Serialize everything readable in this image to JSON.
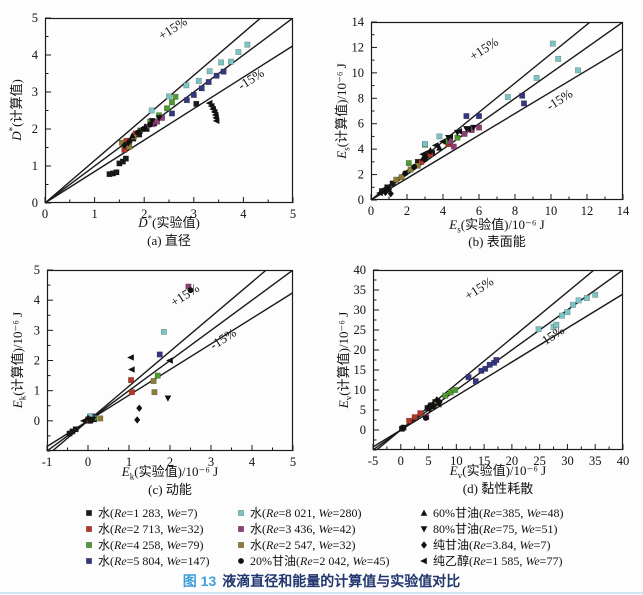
{
  "figure": {
    "caption_label": "图 13",
    "caption_text": "液滴直径和能量的计算值与实验值对比",
    "caption_label_color": "#3f9fd8",
    "caption_text_color": "#21366e"
  },
  "ref_lines": {
    "slopes": [
      1.15,
      1.0,
      0.85
    ],
    "color": "#1a1a1a",
    "upper_label": "+15%",
    "lower_label": "-15%"
  },
  "legend": {
    "series": [
      {
        "id": "w1283",
        "name": "水",
        "re": "1 283",
        "we": "7",
        "marker": "square",
        "color": "#1a1a1a",
        "column": 0
      },
      {
        "id": "w2713",
        "name": "水",
        "re": "2 713",
        "we": "32",
        "marker": "square",
        "color": "#b53527",
        "column": 0
      },
      {
        "id": "w4258",
        "name": "水",
        "re": "4 258",
        "we": "79",
        "marker": "square",
        "color": "#4f9a2f",
        "column": 0
      },
      {
        "id": "w5804",
        "name": "水",
        "re": "5 804",
        "we": "147",
        "marker": "square",
        "color": "#34377f",
        "column": 0
      },
      {
        "id": "w8021",
        "name": "水",
        "re": "8 021",
        "we": "280",
        "marker": "square",
        "color": "#7cc3c3",
        "column": 1
      },
      {
        "id": "w3436",
        "name": "水",
        "re": "3 436",
        "we": "42",
        "marker": "square",
        "color": "#8d3e74",
        "column": 1
      },
      {
        "id": "w2547",
        "name": "水",
        "re": "2 547",
        "we": "32",
        "marker": "square",
        "color": "#8d7c35",
        "column": 1
      },
      {
        "id": "g20",
        "name": "20%甘油",
        "re": "2 042",
        "we": "45",
        "marker": "circle",
        "color": "#111111",
        "column": 1
      },
      {
        "id": "g60",
        "name": "60%甘油",
        "re": "385",
        "we": "48",
        "marker": "tri-up",
        "color": "#111111",
        "column": 2
      },
      {
        "id": "g80",
        "name": "80%甘油",
        "re": "75",
        "we": "51",
        "marker": "tri-down",
        "color": "#111111",
        "column": 2
      },
      {
        "id": "g100",
        "name": "纯甘油",
        "re": "3.84",
        "we": "7",
        "marker": "diamond",
        "color": "#111111",
        "column": 2
      },
      {
        "id": "eth",
        "name": "纯乙醇",
        "re": "1 585",
        "we": "77",
        "marker": "tri-left",
        "color": "#111111",
        "column": 2
      }
    ]
  },
  "chart_data": [
    {
      "type": "scatter",
      "caption": "(a) 直径",
      "xlabel": {
        "main": "D",
        "sup": "*",
        "sub": "",
        "rest": "(实验值)"
      },
      "ylabel": {
        "main": "D",
        "sup": "*",
        "sub": "",
        "rest": "(计算值)"
      },
      "xlim": [
        0,
        5
      ],
      "ylim": [
        0,
        5
      ],
      "xticks": [
        0,
        1,
        2,
        3,
        4,
        5
      ],
      "yticks": [
        0,
        1,
        2,
        3,
        4,
        5
      ],
      "x_minor_step": 0.5,
      "y_minor_step": 0.5,
      "grid": false,
      "annotations": [
        {
          "text": "+15%",
          "x": 2.62,
          "y": 4.62
        },
        {
          "text": "-15%",
          "x": 4.2,
          "y": 3.25
        }
      ],
      "points": {
        "w1283": [
          [
            1.3,
            0.78
          ],
          [
            1.37,
            0.8
          ],
          [
            1.44,
            0.83
          ],
          [
            1.5,
            1.07
          ],
          [
            1.57,
            1.12
          ],
          [
            1.63,
            1.2
          ],
          [
            1.7,
            1.68
          ],
          [
            1.78,
            1.74
          ],
          [
            1.9,
            1.85
          ],
          [
            2.05,
            2.0
          ],
          [
            2.2,
            2.15
          ],
          [
            3.05,
            2.68
          ]
        ],
        "w2713": [
          [
            1.6,
            1.44
          ],
          [
            1.64,
            1.68
          ],
          [
            1.83,
            1.88
          ]
        ],
        "w4258": [
          [
            2.12,
            2.2
          ],
          [
            2.3,
            2.37
          ],
          [
            2.46,
            2.56
          ],
          [
            2.56,
            2.72
          ],
          [
            2.63,
            2.87
          ]
        ],
        "w5804": [
          [
            2.56,
            2.42
          ],
          [
            2.86,
            2.78
          ],
          [
            3.0,
            2.92
          ],
          [
            3.16,
            3.1
          ],
          [
            3.3,
            3.27
          ],
          [
            3.46,
            3.44
          ],
          [
            3.6,
            3.55
          ]
        ],
        "w8021": [
          [
            2.15,
            2.5
          ],
          [
            2.5,
            2.88
          ],
          [
            2.85,
            3.18
          ],
          [
            3.1,
            3.3
          ],
          [
            3.32,
            3.56
          ],
          [
            3.55,
            3.8
          ],
          [
            3.75,
            3.82
          ],
          [
            3.9,
            4.08
          ],
          [
            4.08,
            4.28
          ]
        ],
        "w3436": [
          [
            2.05,
            2.06
          ],
          [
            2.16,
            2.13
          ],
          [
            2.26,
            2.2
          ],
          [
            2.36,
            2.3
          ]
        ],
        "w2547": [
          [
            1.55,
            1.63
          ],
          [
            1.7,
            1.52
          ],
          [
            1.79,
            1.79
          ],
          [
            1.92,
            1.96
          ]
        ],
        "g20": [
          [
            1.87,
            1.9
          ],
          [
            1.98,
            2.0
          ],
          [
            2.12,
            2.12
          ]
        ],
        "g60": [
          [
            1.76,
            1.82
          ],
          [
            1.9,
            1.94
          ],
          [
            2.02,
            2.06
          ]
        ],
        "g80": [
          [
            2.16,
            2.22
          ],
          [
            2.3,
            2.3
          ]
        ],
        "g100": [
          [
            1.6,
            1.56
          ],
          [
            1.68,
            1.63
          ]
        ],
        "eth": [
          [
            3.32,
            2.7
          ],
          [
            3.36,
            2.62
          ],
          [
            3.39,
            2.54
          ],
          [
            3.42,
            2.46
          ],
          [
            3.44,
            2.38
          ],
          [
            3.45,
            2.3
          ],
          [
            3.46,
            2.22
          ]
        ]
      }
    },
    {
      "type": "scatter",
      "caption": "(b) 表面能",
      "xlabel": {
        "main": "E",
        "sup": "",
        "sub": "s",
        "rest": "(实验值)/10⁻⁶ J"
      },
      "ylabel": {
        "main": "E",
        "sup": "",
        "sub": "s",
        "rest": "(计算值)/10⁻⁶ J"
      },
      "xlim": [
        0,
        14
      ],
      "ylim": [
        0,
        14
      ],
      "xticks": [
        0,
        2,
        4,
        6,
        8,
        10,
        12,
        14
      ],
      "yticks": [
        0,
        2,
        4,
        6,
        8,
        10,
        12,
        14
      ],
      "x_minor_step": 1,
      "y_minor_step": 1,
      "grid": false,
      "annotations": [
        {
          "text": "+15%",
          "x": 6.4,
          "y": 11.6
        },
        {
          "text": "-15%",
          "x": 10.6,
          "y": 7.6
        }
      ],
      "points": {
        "w1283": [
          [
            0.6,
            0.7
          ],
          [
            0.9,
            1.0
          ],
          [
            1.2,
            1.3
          ],
          [
            2.6,
            3.0
          ],
          [
            3.1,
            3.5
          ],
          [
            3.4,
            3.7
          ]
        ],
        "w2713": [
          [
            2.8,
            3.0
          ],
          [
            3.3,
            3.6
          ],
          [
            4.3,
            4.4
          ]
        ],
        "w4258": [
          [
            2.1,
            2.9
          ],
          [
            3.0,
            4.35
          ],
          [
            4.2,
            4.6
          ],
          [
            4.8,
            4.9
          ]
        ],
        "w5804": [
          [
            5.3,
            6.6
          ],
          [
            6.0,
            6.6
          ],
          [
            8.4,
            8.2
          ],
          [
            8.5,
            7.6
          ]
        ],
        "w8021": [
          [
            3.0,
            4.4
          ],
          [
            3.8,
            5.0
          ],
          [
            7.6,
            8.1
          ],
          [
            9.2,
            9.6
          ],
          [
            10.1,
            12.3
          ],
          [
            10.4,
            11.1
          ],
          [
            11.5,
            10.2
          ]
        ],
        "w3436": [
          [
            4.4,
            4.6
          ],
          [
            5.2,
            5.2
          ],
          [
            5.6,
            5.5
          ],
          [
            6.0,
            5.7
          ],
          [
            4.6,
            4.2
          ]
        ],
        "w2547": [
          [
            1.4,
            1.6
          ],
          [
            1.7,
            1.8
          ],
          [
            2.2,
            2.4
          ],
          [
            2.6,
            2.7
          ]
        ],
        "g20": [
          [
            1.9,
            2.1
          ],
          [
            2.4,
            2.6
          ],
          [
            3.0,
            3.2
          ]
        ],
        "g60": [
          [
            2.9,
            3.3
          ],
          [
            3.3,
            3.9
          ],
          [
            3.8,
            4.1
          ]
        ],
        "g80": [
          [
            4.3,
            4.9
          ],
          [
            4.8,
            5.3
          ],
          [
            5.3,
            5.6
          ],
          [
            5.7,
            5.7
          ]
        ],
        "g100": [
          [
            0.8,
            0.6
          ],
          [
            1.0,
            0.85
          ],
          [
            1.1,
            0.5
          ]
        ],
        "eth": [
          [
            0.5,
            0.55
          ],
          [
            0.8,
            0.9
          ],
          [
            2.9,
            3.6
          ],
          [
            3.2,
            3.8
          ],
          [
            3.6,
            4.3
          ],
          [
            4.0,
            4.6
          ],
          [
            4.4,
            5.0
          ],
          [
            4.9,
            5.4
          ],
          [
            5.4,
            5.6
          ]
        ]
      }
    },
    {
      "type": "scatter",
      "caption": "(c) 动能",
      "xlabel": {
        "main": "E",
        "sup": "",
        "sub": "k",
        "rest": "(实验值)/10⁻⁶ J"
      },
      "ylabel": {
        "main": "E",
        "sup": "",
        "sub": "k",
        "rest": "(计算值)/10⁻⁶ J"
      },
      "xlim": [
        -1,
        5
      ],
      "ylim": [
        -1,
        5
      ],
      "xticks": [
        -1,
        0,
        1,
        2,
        3,
        4,
        5
      ],
      "yticks": [
        0,
        1,
        2,
        3,
        4,
        5
      ],
      "x_minor_step": 0.5,
      "y_minor_step": 0.5,
      "grid": false,
      "annotations": [
        {
          "text": "+15%",
          "x": 2.42,
          "y": 4.05
        },
        {
          "text": "-15%",
          "x": 3.35,
          "y": 2.6
        }
      ],
      "points": {
        "w1283": [
          [
            0.05,
            0.0
          ],
          [
            0.15,
            0.05
          ],
          [
            -0.3,
            -0.28
          ],
          [
            -0.38,
            -0.35
          ],
          [
            -0.45,
            -0.42
          ]
        ],
        "w2713": [
          [
            1.05,
            1.35
          ],
          [
            1.07,
            0.95
          ],
          [
            0.0,
            0.05
          ]
        ],
        "w4258": [
          [
            1.7,
            1.5
          ],
          [
            0.15,
            0.1
          ]
        ],
        "w5804": [
          [
            1.75,
            2.2
          ],
          [
            0.1,
            0.15
          ]
        ],
        "w8021": [
          [
            1.85,
            2.95
          ],
          [
            0.05,
            0.15
          ]
        ],
        "w3436": [
          [
            2.45,
            4.45
          ]
        ],
        "w2547": [
          [
            1.6,
            1.32
          ],
          [
            1.62,
            0.95
          ],
          [
            0.3,
            0.08
          ]
        ],
        "g20": [
          [
            2.5,
            4.33
          ],
          [
            0.05,
            0.05
          ]
        ],
        "g60": [
          [
            0.0,
            0.1
          ]
        ],
        "g80": [
          [
            1.95,
            0.75
          ],
          [
            0.12,
            0.04
          ]
        ],
        "g100": [
          [
            1.25,
            0.42
          ],
          [
            1.2,
            0.03
          ]
        ],
        "eth": [
          [
            1.05,
            2.1
          ],
          [
            1.07,
            1.7
          ],
          [
            2.0,
            2.0
          ],
          [
            -0.1,
            0.0
          ]
        ]
      }
    },
    {
      "type": "scatter",
      "caption": "(d) 黏性耗散",
      "xlabel": {
        "main": "E",
        "sup": "",
        "sub": "v",
        "rest": "(实验值)/10⁻⁶ J"
      },
      "ylabel": {
        "main": "E",
        "sup": "",
        "sub": "v",
        "rest": "(计算值)/10⁻⁶ J"
      },
      "xlim": [
        -5,
        40
      ],
      "ylim": [
        -5,
        40
      ],
      "xticks": [
        -5,
        0,
        5,
        10,
        15,
        20,
        25,
        30,
        35,
        40
      ],
      "yticks": [
        0,
        5,
        10,
        15,
        20,
        25,
        30,
        35,
        40
      ],
      "x_minor_step": 2.5,
      "y_minor_step": 2.5,
      "grid": false,
      "annotations": [
        {
          "text": "+15%",
          "x": 14.5,
          "y": 34.5
        },
        {
          "text": "-15%",
          "x": 27.5,
          "y": 22.5
        }
      ],
      "points": {
        "w1283": [
          [
            0.2,
            0.3
          ],
          [
            4.8,
            5.5
          ],
          [
            5.5,
            6.2
          ],
          [
            6.2,
            7.0
          ],
          [
            0.5,
            0.6
          ]
        ],
        "w2713": [
          [
            1.5,
            2.3
          ],
          [
            2.5,
            3.2
          ],
          [
            3.5,
            4.2
          ]
        ],
        "w4258": [
          [
            8.0,
            8.6
          ],
          [
            9.0,
            9.4
          ],
          [
            9.8,
            10.0
          ]
        ],
        "w5804": [
          [
            12.2,
            13.2
          ],
          [
            13.5,
            12.2
          ],
          [
            14.5,
            14.8
          ],
          [
            15.2,
            15.3
          ],
          [
            16.0,
            16.3
          ],
          [
            16.8,
            16.8
          ],
          [
            17.2,
            17.5
          ]
        ],
        "w8021": [
          [
            24.8,
            25.2
          ],
          [
            27.5,
            25.8
          ],
          [
            28.0,
            26.3
          ],
          [
            29.0,
            28.6
          ],
          [
            30.0,
            29.5
          ],
          [
            31.0,
            31.3
          ],
          [
            32.0,
            32.4
          ],
          [
            33.5,
            33.0
          ],
          [
            35.0,
            33.8
          ]
        ],
        "w3436": [
          [
            4.6,
            3.2
          ]
        ],
        "w2547": [
          [
            6.0,
            6.3
          ],
          [
            6.6,
            6.8
          ]
        ],
        "g20": [
          [
            4.5,
            3.0
          ],
          [
            0.3,
            0.5
          ]
        ],
        "g60": [
          [
            5.0,
            6.0
          ],
          [
            5.8,
            6.5
          ]
        ],
        "g80": [
          [
            5.2,
            5.0
          ],
          [
            6.0,
            5.8
          ]
        ],
        "g100": [
          [
            6.5,
            7.5
          ],
          [
            7.0,
            7.0
          ]
        ],
        "eth": [
          [
            5.5,
            5.8
          ],
          [
            6.8,
            6.4
          ]
        ]
      }
    }
  ]
}
